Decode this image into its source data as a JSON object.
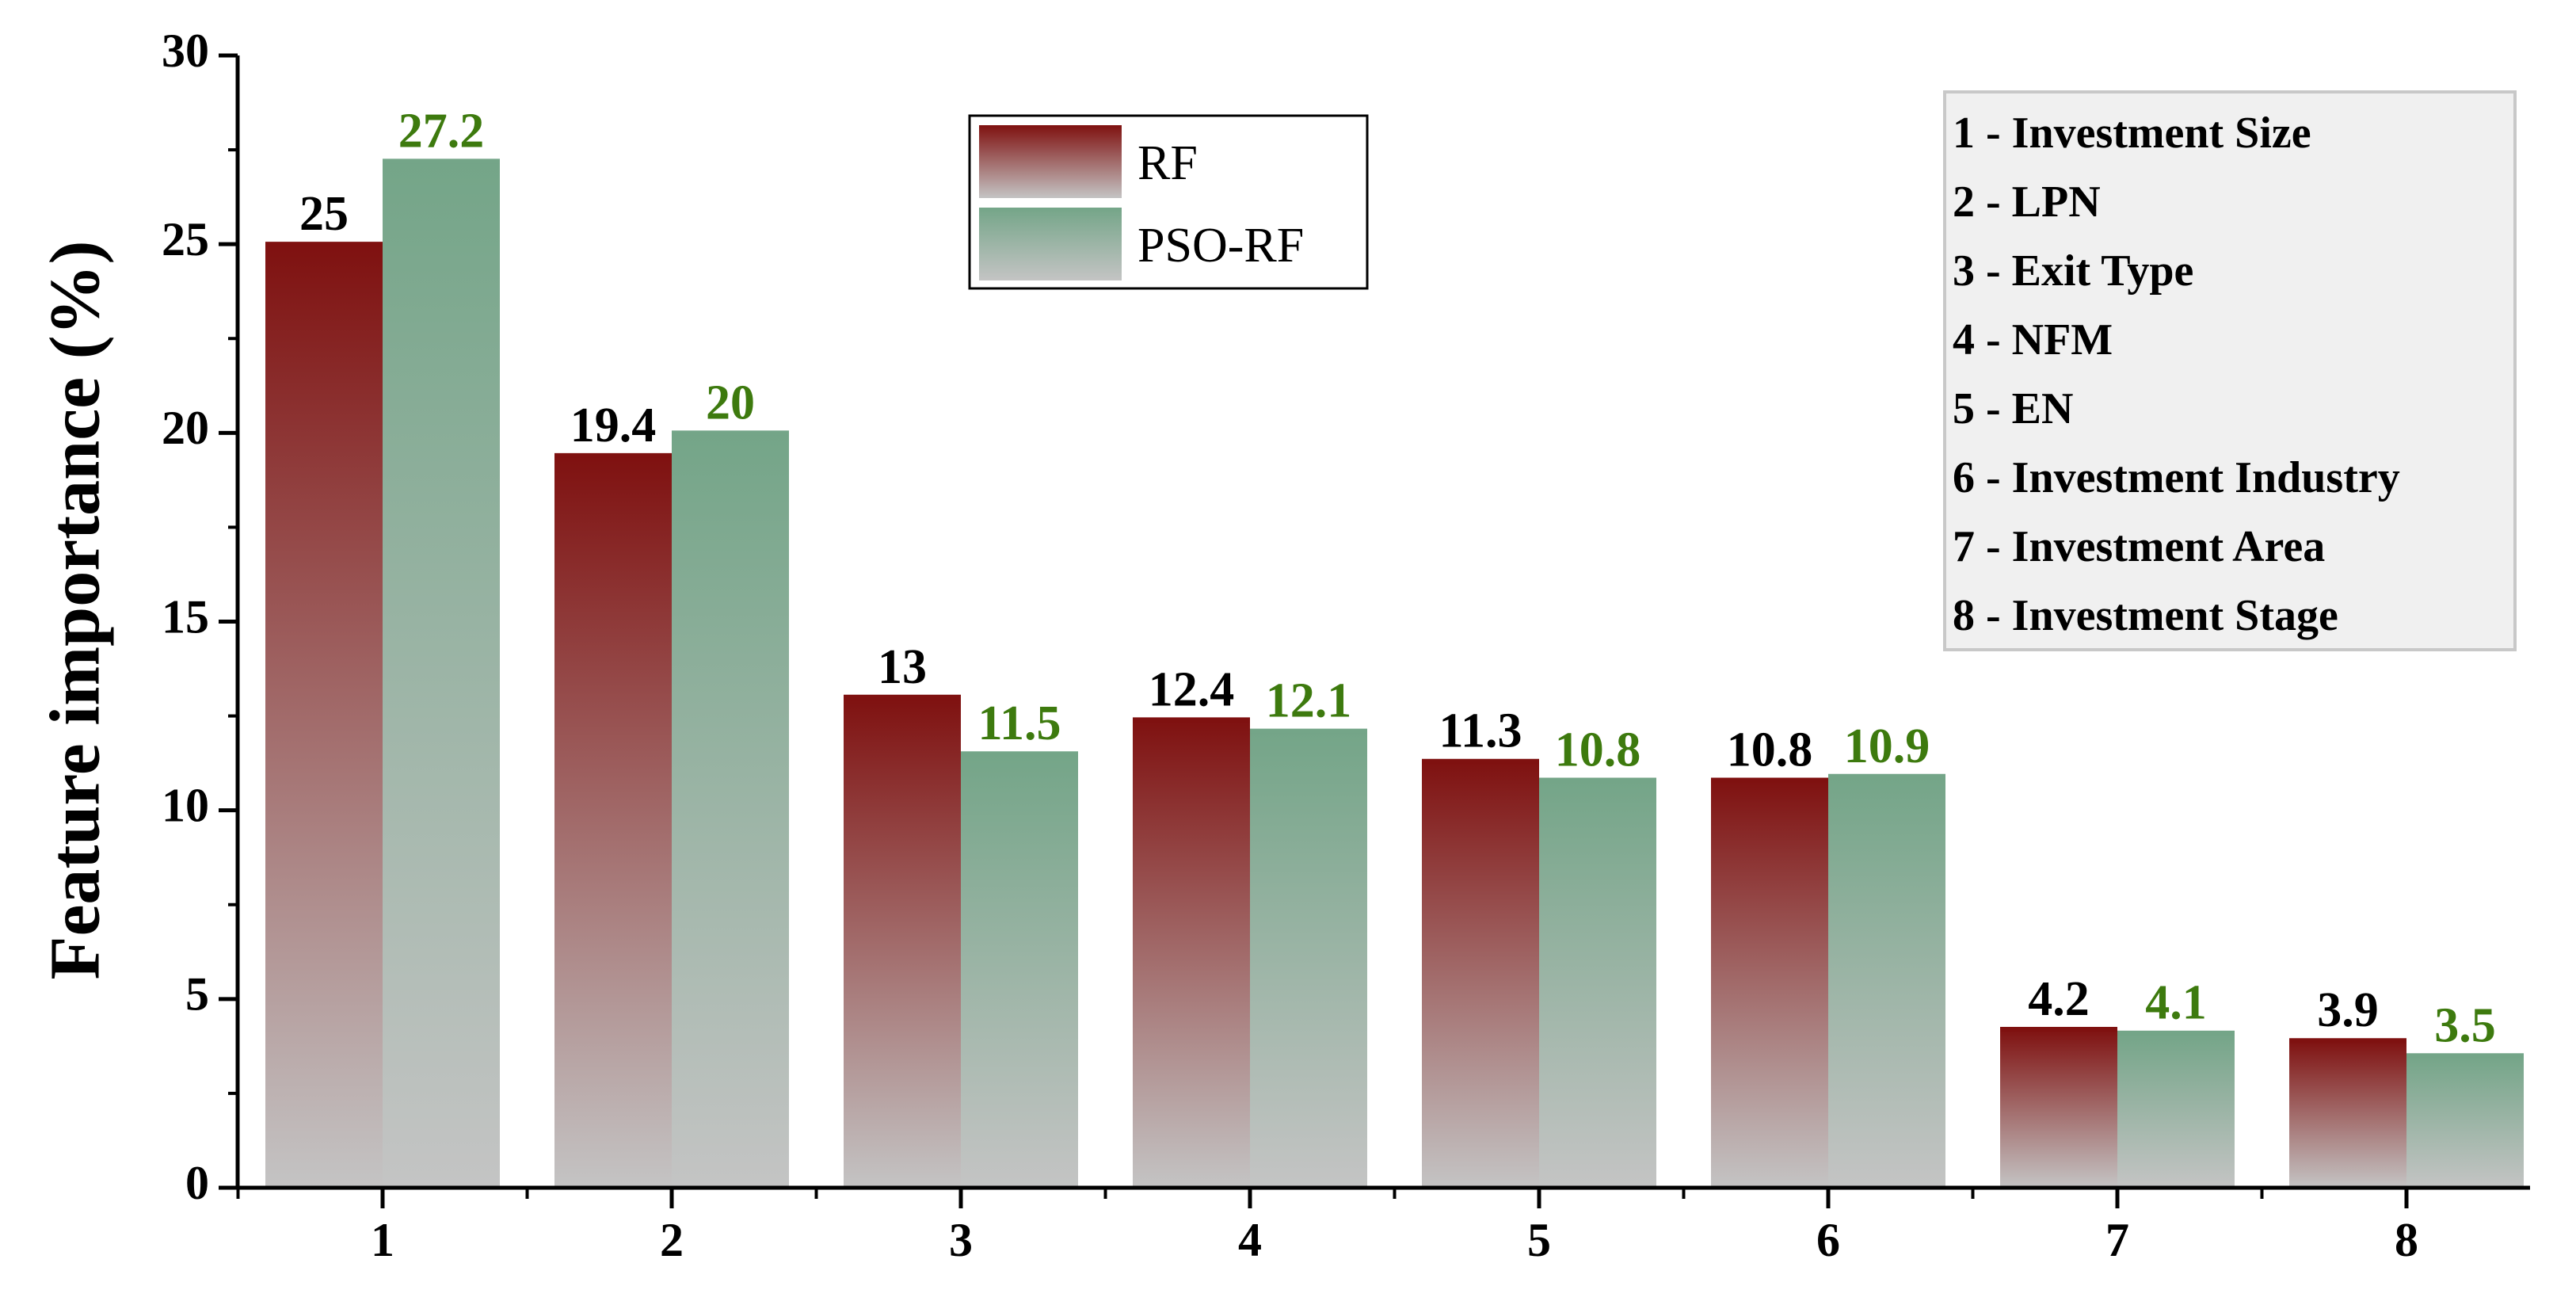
{
  "chart_data": {
    "type": "bar",
    "categories": [
      "1",
      "2",
      "3",
      "4",
      "5",
      "6",
      "7",
      "8"
    ],
    "series": [
      {
        "name": "RF",
        "values": [
          25,
          19.4,
          13,
          12.4,
          11.3,
          10.8,
          4.2,
          3.9
        ],
        "color_top": "#7f1110",
        "color_bottom": "#c4c4c4",
        "label_color": "#000000"
      },
      {
        "name": "PSO-RF",
        "values": [
          27.2,
          20,
          11.5,
          12.1,
          10.8,
          10.9,
          4.1,
          3.5
        ],
        "color_top": "#74a588",
        "color_bottom": "#c4c4c4",
        "label_color": "#3d7a0e"
      }
    ],
    "value_labels": {
      "RF": [
        "25",
        "19.4",
        "13",
        "12.4",
        "11.3",
        "10.8",
        "4.2",
        "3.9"
      ],
      "PSO-RF": [
        "27.2",
        "20",
        "11.5",
        "12.1",
        "10.8",
        "10.9",
        "4.1",
        "3.5"
      ]
    },
    "title": "",
    "xlabel": "",
    "ylabel": "Feature importance (%)",
    "ylim": [
      0,
      30
    ],
    "yticks": [
      "0",
      "5",
      "10",
      "15",
      "20",
      "25",
      "30"
    ],
    "grid": false,
    "legend_position": "top-center",
    "key_box": {
      "position": "top-right",
      "items": [
        "1 - Investment Size",
        "2 - LPN",
        "3 - Exit Type",
        "4 - NFM",
        "5 - EN",
        "6 - Investment Industry",
        "7 - Investment Area",
        "8 - Investment Stage"
      ]
    }
  }
}
